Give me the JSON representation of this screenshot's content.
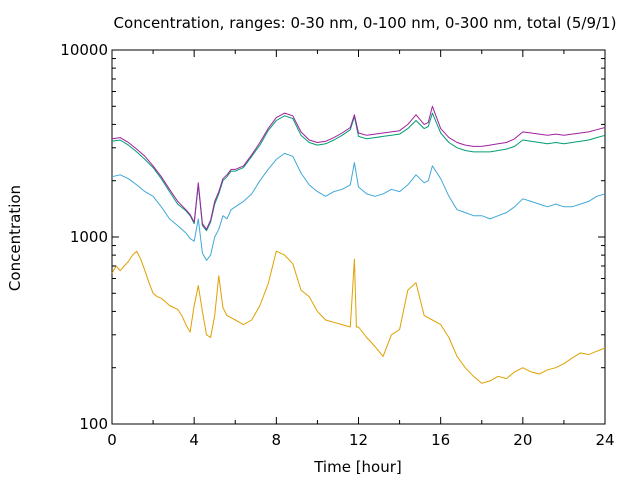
{
  "chart_data": {
    "type": "line",
    "title": "Concentration, ranges: 0-30 nm, 0-100 nm, 0-300 nm, total (5/9/1)",
    "xlabel": "Time [hour]",
    "ylabel": "Concentration",
    "xlim": [
      0,
      24
    ],
    "ylim": [
      100,
      10000
    ],
    "yscale": "log",
    "grid": false,
    "legend": "none",
    "x_ticks": [
      "0",
      "4",
      "8",
      "12",
      "16",
      "20",
      "24"
    ],
    "y_ticks": [
      "100",
      "1000",
      "10000"
    ],
    "series": [
      {
        "color": "#e0a000",
        "x": [
          0,
          0.2,
          0.4,
          0.6,
          0.8,
          1.0,
          1.2,
          1.4,
          1.6,
          1.8,
          2.0,
          2.2,
          2.4,
          2.6,
          2.8,
          3.0,
          3.2,
          3.4,
          3.6,
          3.8,
          4.0,
          4.2,
          4.4,
          4.6,
          4.8,
          5.0,
          5.2,
          5.4,
          5.6,
          5.8,
          6.0,
          6.4,
          6.8,
          7.2,
          7.6,
          8.0,
          8.4,
          8.8,
          9.2,
          9.6,
          10.0,
          10.4,
          10.8,
          11.2,
          11.6,
          11.8,
          11.9,
          12.0,
          12.4,
          12.8,
          13.2,
          13.6,
          14.0,
          14.4,
          14.8,
          15.2,
          15.6,
          16.0,
          16.4,
          16.8,
          17.2,
          17.6,
          18.0,
          18.4,
          18.8,
          19.2,
          19.6,
          20.0,
          20.4,
          20.8,
          21.2,
          21.6,
          22.0,
          22.4,
          22.8,
          23.2,
          23.6,
          24.0
        ],
        "values": [
          640,
          700,
          660,
          700,
          740,
          800,
          840,
          760,
          660,
          570,
          500,
          480,
          470,
          450,
          430,
          420,
          410,
          380,
          340,
          310,
          430,
          550,
          400,
          300,
          290,
          380,
          620,
          420,
          380,
          370,
          360,
          340,
          360,
          430,
          560,
          840,
          800,
          720,
          520,
          480,
          400,
          360,
          350,
          340,
          330,
          760,
          330,
          330,
          290,
          260,
          230,
          300,
          320,
          520,
          570,
          380,
          360,
          340,
          290,
          230,
          200,
          180,
          165,
          170,
          180,
          175,
          190,
          200,
          190,
          185,
          195,
          200,
          210,
          225,
          240,
          235,
          245,
          255
        ]
      },
      {
        "color": "#40a8d8",
        "x": [
          0,
          0.4,
          0.8,
          1.2,
          1.6,
          2.0,
          2.4,
          2.8,
          3.2,
          3.6,
          3.8,
          4.0,
          4.2,
          4.4,
          4.6,
          4.8,
          5.0,
          5.2,
          5.4,
          5.6,
          5.8,
          6.0,
          6.4,
          6.8,
          7.2,
          7.6,
          8.0,
          8.4,
          8.8,
          9.2,
          9.6,
          10.0,
          10.4,
          10.8,
          11.2,
          11.6,
          11.8,
          12.0,
          12.4,
          12.8,
          13.2,
          13.6,
          14.0,
          14.4,
          14.8,
          15.2,
          15.4,
          15.6,
          16.0,
          16.4,
          16.8,
          17.2,
          17.6,
          18.0,
          18.4,
          18.8,
          19.2,
          19.6,
          20.0,
          20.4,
          20.8,
          21.2,
          21.6,
          22.0,
          22.4,
          22.8,
          23.2,
          23.6,
          24.0
        ],
        "values": [
          2100,
          2150,
          2050,
          1900,
          1750,
          1650,
          1450,
          1250,
          1150,
          1050,
          980,
          950,
          1250,
          820,
          750,
          800,
          1000,
          1100,
          1300,
          1250,
          1400,
          1450,
          1550,
          1700,
          2000,
          2300,
          2600,
          2800,
          2700,
          2200,
          1900,
          1750,
          1650,
          1750,
          1800,
          1900,
          2500,
          1850,
          1700,
          1650,
          1700,
          1800,
          1750,
          1900,
          2150,
          1950,
          2000,
          2400,
          2050,
          1650,
          1400,
          1350,
          1300,
          1300,
          1250,
          1300,
          1350,
          1450,
          1600,
          1550,
          1500,
          1450,
          1500,
          1450,
          1450,
          1500,
          1550,
          1650,
          1700
        ]
      },
      {
        "color": "#009e73",
        "x": [
          0,
          0.4,
          0.8,
          1.2,
          1.6,
          2.0,
          2.4,
          2.8,
          3.2,
          3.6,
          3.8,
          4.0,
          4.2,
          4.4,
          4.6,
          4.8,
          5.0,
          5.2,
          5.4,
          5.6,
          5.8,
          6.0,
          6.4,
          6.8,
          7.2,
          7.6,
          8.0,
          8.4,
          8.8,
          9.2,
          9.6,
          10.0,
          10.4,
          10.8,
          11.2,
          11.6,
          11.8,
          12.0,
          12.4,
          12.8,
          13.2,
          13.6,
          14.0,
          14.4,
          14.8,
          15.2,
          15.4,
          15.6,
          16.0,
          16.4,
          16.8,
          17.2,
          17.6,
          18.0,
          18.4,
          18.8,
          19.2,
          19.6,
          20.0,
          20.4,
          20.8,
          21.2,
          21.6,
          22.0,
          22.4,
          22.8,
          23.2,
          23.6,
          24.0
        ],
        "values": [
          3250,
          3300,
          3100,
          2850,
          2600,
          2350,
          2050,
          1750,
          1500,
          1380,
          1300,
          1180,
          1900,
          1150,
          1080,
          1200,
          1500,
          1700,
          2000,
          2100,
          2250,
          2250,
          2350,
          2700,
          3100,
          3700,
          4200,
          4450,
          4300,
          3500,
          3200,
          3100,
          3150,
          3300,
          3500,
          3750,
          4400,
          3450,
          3350,
          3400,
          3450,
          3500,
          3550,
          3800,
          4200,
          3800,
          3900,
          4600,
          3600,
          3200,
          3000,
          2900,
          2850,
          2850,
          2850,
          2900,
          2950,
          3050,
          3300,
          3250,
          3200,
          3150,
          3200,
          3150,
          3200,
          3250,
          3300,
          3400,
          3500
        ]
      },
      {
        "color": "#a020a0",
        "x": [
          0,
          0.4,
          0.8,
          1.2,
          1.6,
          2.0,
          2.4,
          2.8,
          3.2,
          3.6,
          3.8,
          4.0,
          4.2,
          4.4,
          4.6,
          4.8,
          5.0,
          5.2,
          5.4,
          5.6,
          5.8,
          6.0,
          6.4,
          6.8,
          7.2,
          7.6,
          8.0,
          8.4,
          8.8,
          9.2,
          9.6,
          10.0,
          10.4,
          10.8,
          11.2,
          11.6,
          11.8,
          12.0,
          12.4,
          12.8,
          13.2,
          13.6,
          14.0,
          14.4,
          14.8,
          15.2,
          15.4,
          15.6,
          16.0,
          16.4,
          16.8,
          17.2,
          17.6,
          18.0,
          18.4,
          18.8,
          19.2,
          19.6,
          20.0,
          20.4,
          20.8,
          21.2,
          21.6,
          22.0,
          22.4,
          22.8,
          23.2,
          23.6,
          24.0
        ],
        "values": [
          3350,
          3400,
          3200,
          2950,
          2700,
          2400,
          2100,
          1800,
          1550,
          1400,
          1320,
          1200,
          1950,
          1180,
          1100,
          1230,
          1550,
          1750,
          2050,
          2150,
          2300,
          2300,
          2400,
          2750,
          3200,
          3800,
          4350,
          4600,
          4450,
          3650,
          3300,
          3200,
          3250,
          3400,
          3600,
          3850,
          4500,
          3600,
          3500,
          3550,
          3600,
          3650,
          3700,
          4000,
          4500,
          4000,
          4100,
          5000,
          3800,
          3400,
          3200,
          3100,
          3050,
          3050,
          3100,
          3150,
          3200,
          3350,
          3650,
          3600,
          3550,
          3500,
          3550,
          3500,
          3550,
          3600,
          3650,
          3750,
          3850
        ]
      }
    ]
  }
}
